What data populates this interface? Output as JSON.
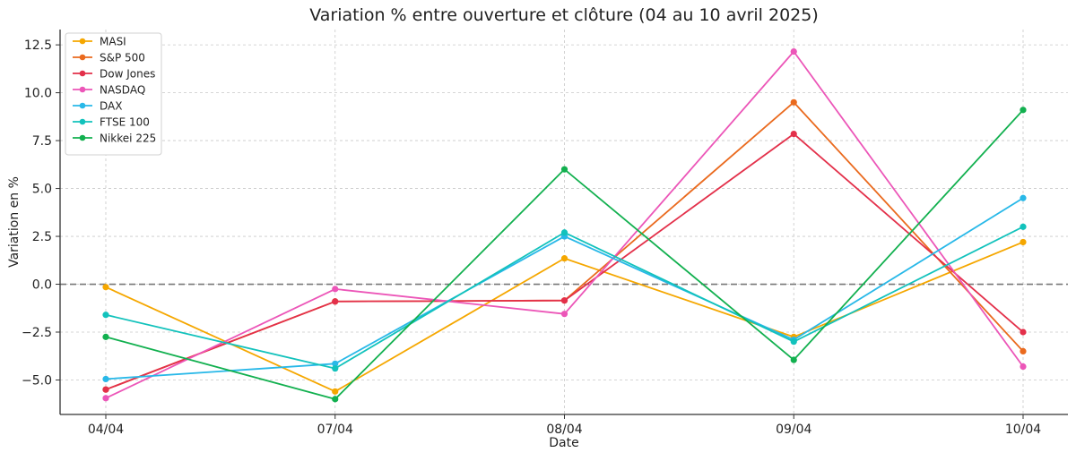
{
  "chart_data": {
    "type": "line",
    "title": "Variation % entre ouverture et clôture (04 au 10 avril 2025)",
    "xlabel": "Date",
    "ylabel": "Variation en %",
    "categories": [
      "04/04",
      "07/04",
      "08/04",
      "09/04",
      "10/04"
    ],
    "ylim": [
      -6.8,
      13.3
    ],
    "yticks": [
      -5.0,
      -2.5,
      0.0,
      2.5,
      5.0,
      7.5,
      10.0,
      12.5
    ],
    "ytick_labels": [
      "−5.0",
      "−2.5",
      "0.0",
      "2.5",
      "5.0",
      "7.5",
      "10.0",
      "12.5"
    ],
    "grid": true,
    "reference_line": {
      "y": 0,
      "style": "dashed",
      "color": "#777777"
    },
    "legend": {
      "placement": "top-left"
    },
    "series": [
      {
        "name": "MASI",
        "color": "#f5a700",
        "values": [
          -0.15,
          -5.6,
          1.35,
          -2.75,
          2.2
        ]
      },
      {
        "name": "S&P 500",
        "color": "#ea6a1e",
        "values": [
          -5.5,
          -0.9,
          -0.85,
          9.5,
          -3.5
        ]
      },
      {
        "name": "Dow Jones",
        "color": "#e3304a",
        "values": [
          -5.5,
          -0.9,
          -0.85,
          7.85,
          -2.5
        ]
      },
      {
        "name": "NASDAQ",
        "color": "#ec56b8",
        "values": [
          -5.95,
          -0.25,
          -1.55,
          12.15,
          -4.3
        ]
      },
      {
        "name": "DAX",
        "color": "#28b8e8",
        "values": [
          -4.95,
          -4.15,
          2.5,
          -2.9,
          4.5
        ]
      },
      {
        "name": "FTSE 100",
        "color": "#12c2bc",
        "values": [
          -1.6,
          -4.4,
          2.7,
          -3.0,
          3.0
        ]
      },
      {
        "name": "Nikkei 225",
        "color": "#12b04f",
        "values": [
          -2.75,
          -6.0,
          6.0,
          -3.95,
          9.1
        ]
      }
    ]
  }
}
